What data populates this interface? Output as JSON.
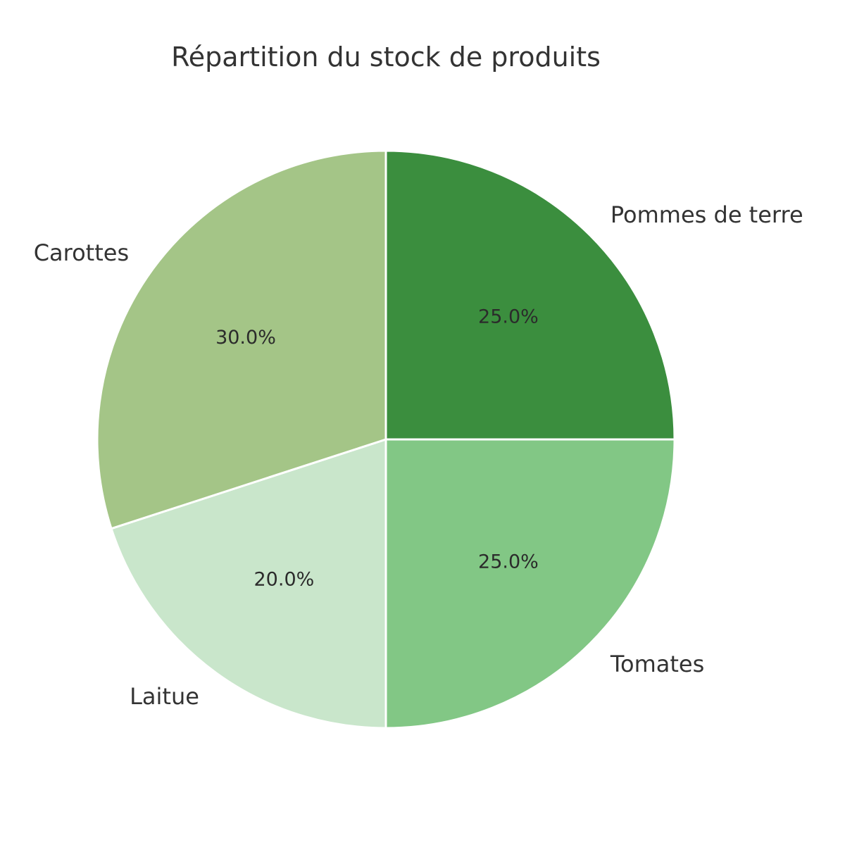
{
  "chart_data": {
    "type": "pie",
    "title": "Répartition du stock de produits",
    "slices": [
      {
        "label": "Pommes de terre",
        "value": 25.0,
        "pct_label": "25.0%",
        "color": "#3b8e3e"
      },
      {
        "label": "Tomates",
        "value": 25.0,
        "pct_label": "25.0%",
        "color": "#82c785"
      },
      {
        "label": "Laitue",
        "value": 20.0,
        "pct_label": "20.0%",
        "color": "#c9e6cb"
      },
      {
        "label": "Carottes",
        "value": 30.0,
        "pct_label": "30.0%",
        "color": "#a4c587"
      }
    ],
    "start_angle_deg": 90,
    "direction": "clockwise",
    "edge_color": "#ffffff"
  }
}
